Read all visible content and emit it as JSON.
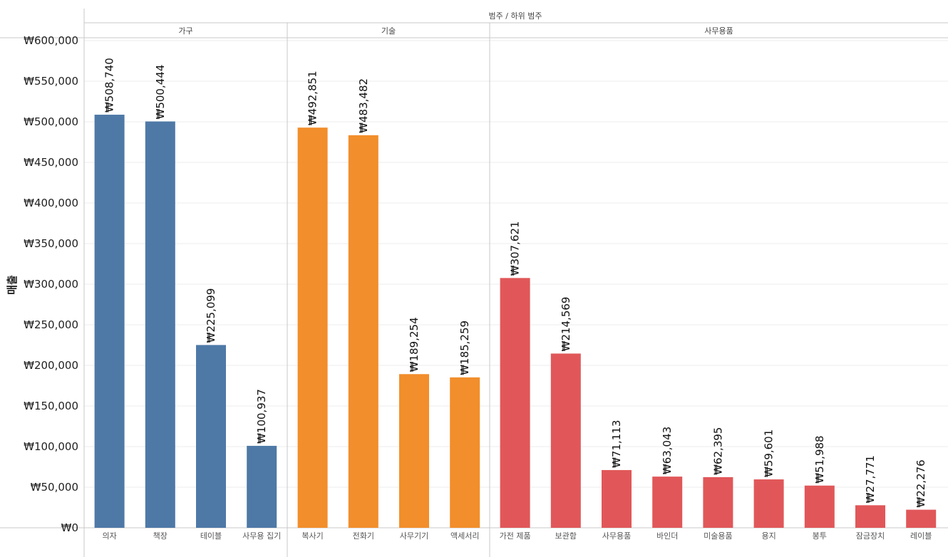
{
  "chart_data": {
    "type": "bar",
    "header": "범주 / 하위 범주",
    "ylabel": "매출",
    "ylim": [
      0,
      600000
    ],
    "y_ticks": [
      0,
      50000,
      100000,
      150000,
      200000,
      250000,
      300000,
      350000,
      400000,
      450000,
      500000,
      550000,
      600000
    ],
    "y_tick_labels": [
      "₩0",
      "₩50,000",
      "₩100,000",
      "₩150,000",
      "₩200,000",
      "₩250,000",
      "₩300,000",
      "₩350,000",
      "₩400,000",
      "₩450,000",
      "₩500,000",
      "₩550,000",
      "₩600,000"
    ],
    "grid": true,
    "groups": [
      {
        "name": "가구",
        "color": "#4e79a7",
        "categories": [
          "의자",
          "책장",
          "테이블",
          "사무용 집기"
        ],
        "values": [
          508740,
          500444,
          225099,
          100937
        ],
        "labels": [
          "₩508,740",
          "₩500,444",
          "₩225,099",
          "₩100,937"
        ]
      },
      {
        "name": "기술",
        "color": "#f28e2b",
        "categories": [
          "복사기",
          "전화기",
          "사무기기",
          "액세서리"
        ],
        "values": [
          492851,
          483482,
          189254,
          185259
        ],
        "labels": [
          "₩492,851",
          "₩483,482",
          "₩189,254",
          "₩185,259"
        ]
      },
      {
        "name": "사무용품",
        "color": "#e15759",
        "categories": [
          "가전 제품",
          "보관함",
          "사무용품",
          "바인더",
          "미술용품",
          "용지",
          "봉투",
          "잠금장치",
          "레이블"
        ],
        "values": [
          307621,
          214569,
          71113,
          63043,
          62395,
          59601,
          51988,
          27771,
          22276
        ],
        "labels": [
          "₩307,621",
          "₩214,569",
          "₩71,113",
          "₩63,043",
          "₩62,395",
          "₩59,601",
          "₩51,988",
          "₩27,771",
          "₩22,276"
        ]
      }
    ]
  }
}
